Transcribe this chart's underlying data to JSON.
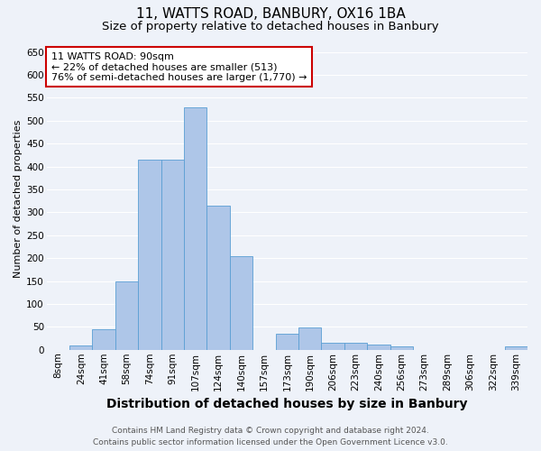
{
  "title_line1": "11, WATTS ROAD, BANBURY, OX16 1BA",
  "title_line2": "Size of property relative to detached houses in Banbury",
  "xlabel": "Distribution of detached houses by size in Banbury",
  "ylabel": "Number of detached properties",
  "categories": [
    "8sqm",
    "24sqm",
    "41sqm",
    "58sqm",
    "74sqm",
    "91sqm",
    "107sqm",
    "124sqm",
    "140sqm",
    "157sqm",
    "173sqm",
    "190sqm",
    "206sqm",
    "223sqm",
    "240sqm",
    "256sqm",
    "273sqm",
    "289sqm",
    "306sqm",
    "322sqm",
    "339sqm"
  ],
  "values": [
    0,
    10,
    45,
    150,
    415,
    415,
    530,
    315,
    205,
    0,
    35,
    48,
    15,
    15,
    12,
    7,
    0,
    0,
    0,
    0,
    7
  ],
  "bar_color": "#aec6e8",
  "bar_edge_color": "#5a9fd4",
  "annotation_text": "11 WATTS ROAD: 90sqm\n← 22% of detached houses are smaller (513)\n76% of semi-detached houses are larger (1,770) →",
  "annotation_box_color": "#ffffff",
  "annotation_box_edge_color": "#cc0000",
  "ylim": [
    0,
    660
  ],
  "yticks": [
    0,
    50,
    100,
    150,
    200,
    250,
    300,
    350,
    400,
    450,
    500,
    550,
    600,
    650
  ],
  "footer_line1": "Contains HM Land Registry data © Crown copyright and database right 2024.",
  "footer_line2": "Contains public sector information licensed under the Open Government Licence v3.0.",
  "bg_color": "#eef2f9",
  "grid_color": "#ffffff",
  "title_fontsize": 11,
  "subtitle_fontsize": 9.5,
  "xlabel_fontsize": 10,
  "ylabel_fontsize": 8,
  "tick_fontsize": 7.5,
  "footer_fontsize": 6.5,
  "ann_fontsize": 8
}
